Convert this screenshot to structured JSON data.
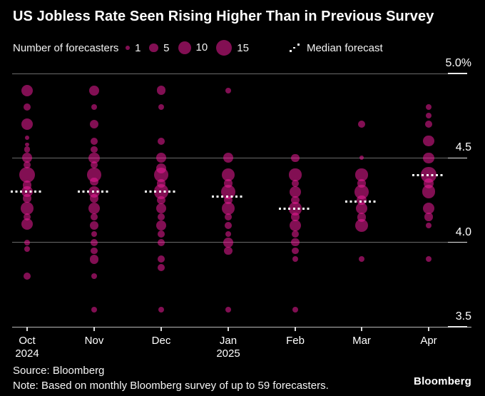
{
  "title": "US Jobless Rate Seen Rising Higher Than in Previous Survey",
  "legend": {
    "label": "Number of forecasters",
    "sizes": [
      {
        "n": 1,
        "label": "1"
      },
      {
        "n": 5,
        "label": "5"
      },
      {
        "n": 10,
        "label": "10"
      },
      {
        "n": 15,
        "label": "15"
      }
    ],
    "median_label": "Median forecast"
  },
  "colors": {
    "background": "#000000",
    "bubble": "rgba(236,28,152,0.55)",
    "bubble_hex": "#ec1c98",
    "gridline": "#6b6b6b",
    "axis_line": "#b9b9b9",
    "median": "#ffffff",
    "text": "#ffffff"
  },
  "y_axis": {
    "tick_labels": [
      "5.0%",
      "4.5",
      "4.0",
      "3.5"
    ],
    "tick_values": [
      5.0,
      4.5,
      4.0,
      3.5
    ],
    "min": 3.5,
    "max": 5.0
  },
  "x_axis": {
    "categories": [
      {
        "label": "Oct",
        "sub": "2024"
      },
      {
        "label": "Nov",
        "sub": ""
      },
      {
        "label": "Dec",
        "sub": ""
      },
      {
        "label": "Jan",
        "sub": "2025"
      },
      {
        "label": "Feb",
        "sub": ""
      },
      {
        "label": "Mar",
        "sub": ""
      },
      {
        "label": "Apr",
        "sub": ""
      }
    ]
  },
  "footer": {
    "source": "Source: Bloomberg",
    "note": "Note: Based on monthly Bloomberg survey of up to 59 forecasters.",
    "logo": "Bloomberg"
  },
  "chart_data": {
    "type": "scatter",
    "subtype": "bubble-strip",
    "unit": "US jobless rate, %",
    "title": "US Jobless Rate Seen Rising Higher Than in Previous Survey",
    "ylim": [
      3.5,
      5.0
    ],
    "grid": "horizontal",
    "legend_position": "top",
    "bubble_scale_note": "bubble area ~ number of forecasters; legend sizes 1, 5, 10, 15",
    "categories": [
      "Oct 2024",
      "Nov",
      "Dec",
      "Jan 2025",
      "Feb",
      "Mar",
      "Apr"
    ],
    "medians": [
      4.3,
      4.3,
      4.3,
      4.27,
      4.2,
      4.24,
      4.4
    ],
    "columns": [
      {
        "month": "Oct 2024",
        "median": 4.3,
        "points": [
          {
            "v": 4.9,
            "n": 8
          },
          {
            "v": 4.8,
            "n": 3
          },
          {
            "v": 4.7,
            "n": 8
          },
          {
            "v": 4.62,
            "n": 1
          },
          {
            "v": 4.58,
            "n": 1
          },
          {
            "v": 4.55,
            "n": 2
          },
          {
            "v": 4.5,
            "n": 6
          },
          {
            "v": 4.46,
            "n": 3
          },
          {
            "v": 4.4,
            "n": 15
          },
          {
            "v": 4.34,
            "n": 5
          },
          {
            "v": 4.3,
            "n": 7
          },
          {
            "v": 4.26,
            "n": 4
          },
          {
            "v": 4.2,
            "n": 10
          },
          {
            "v": 4.15,
            "n": 3
          },
          {
            "v": 4.11,
            "n": 8
          },
          {
            "v": 4.0,
            "n": 2
          },
          {
            "v": 3.96,
            "n": 2
          },
          {
            "v": 3.8,
            "n": 3
          }
        ]
      },
      {
        "month": "Nov",
        "median": 4.3,
        "points": [
          {
            "v": 4.9,
            "n": 6
          },
          {
            "v": 4.8,
            "n": 2
          },
          {
            "v": 4.7,
            "n": 5
          },
          {
            "v": 4.6,
            "n": 3
          },
          {
            "v": 4.55,
            "n": 3
          },
          {
            "v": 4.5,
            "n": 7
          },
          {
            "v": 4.46,
            "n": 3
          },
          {
            "v": 4.4,
            "n": 12
          },
          {
            "v": 4.36,
            "n": 4
          },
          {
            "v": 4.3,
            "n": 8
          },
          {
            "v": 4.26,
            "n": 4
          },
          {
            "v": 4.2,
            "n": 8
          },
          {
            "v": 4.15,
            "n": 3
          },
          {
            "v": 4.1,
            "n": 5
          },
          {
            "v": 4.05,
            "n": 2
          },
          {
            "v": 4.0,
            "n": 3
          },
          {
            "v": 3.95,
            "n": 3
          },
          {
            "v": 3.9,
            "n": 5
          },
          {
            "v": 3.8,
            "n": 2
          },
          {
            "v": 3.6,
            "n": 2
          }
        ]
      },
      {
        "month": "Dec",
        "median": 4.3,
        "points": [
          {
            "v": 4.9,
            "n": 5
          },
          {
            "v": 4.8,
            "n": 2
          },
          {
            "v": 4.6,
            "n": 3
          },
          {
            "v": 4.5,
            "n": 6
          },
          {
            "v": 4.44,
            "n": 6
          },
          {
            "v": 4.4,
            "n": 12
          },
          {
            "v": 4.35,
            "n": 4
          },
          {
            "v": 4.3,
            "n": 13
          },
          {
            "v": 4.25,
            "n": 4
          },
          {
            "v": 4.2,
            "n": 6
          },
          {
            "v": 4.15,
            "n": 3
          },
          {
            "v": 4.1,
            "n": 6
          },
          {
            "v": 4.05,
            "n": 3
          },
          {
            "v": 4.0,
            "n": 3
          },
          {
            "v": 3.9,
            "n": 3
          },
          {
            "v": 3.85,
            "n": 3
          },
          {
            "v": 3.6,
            "n": 2
          }
        ]
      },
      {
        "month": "Jan 2025",
        "median": 4.27,
        "points": [
          {
            "v": 4.9,
            "n": 2
          },
          {
            "v": 4.5,
            "n": 6
          },
          {
            "v": 4.4,
            "n": 11
          },
          {
            "v": 4.35,
            "n": 4
          },
          {
            "v": 4.3,
            "n": 12
          },
          {
            "v": 4.25,
            "n": 4
          },
          {
            "v": 4.2,
            "n": 10
          },
          {
            "v": 4.15,
            "n": 3
          },
          {
            "v": 4.1,
            "n": 3
          },
          {
            "v": 4.05,
            "n": 2
          },
          {
            "v": 4.0,
            "n": 6
          },
          {
            "v": 3.95,
            "n": 4
          },
          {
            "v": 3.6,
            "n": 2
          }
        ]
      },
      {
        "month": "Feb",
        "median": 4.2,
        "points": [
          {
            "v": 4.5,
            "n": 4
          },
          {
            "v": 4.4,
            "n": 9
          },
          {
            "v": 4.35,
            "n": 3
          },
          {
            "v": 4.3,
            "n": 8
          },
          {
            "v": 4.25,
            "n": 4
          },
          {
            "v": 4.2,
            "n": 11
          },
          {
            "v": 4.15,
            "n": 4
          },
          {
            "v": 4.1,
            "n": 8
          },
          {
            "v": 4.05,
            "n": 3
          },
          {
            "v": 4.0,
            "n": 4
          },
          {
            "v": 3.95,
            "n": 3
          },
          {
            "v": 3.9,
            "n": 2
          },
          {
            "v": 3.6,
            "n": 2
          }
        ]
      },
      {
        "month": "Mar",
        "median": 4.24,
        "points": [
          {
            "v": 4.7,
            "n": 3
          },
          {
            "v": 4.5,
            "n": 1
          },
          {
            "v": 4.4,
            "n": 9
          },
          {
            "v": 4.35,
            "n": 4
          },
          {
            "v": 4.3,
            "n": 12
          },
          {
            "v": 4.25,
            "n": 6
          },
          {
            "v": 4.2,
            "n": 8
          },
          {
            "v": 4.15,
            "n": 5
          },
          {
            "v": 4.1,
            "n": 10
          },
          {
            "v": 3.9,
            "n": 2
          }
        ]
      },
      {
        "month": "Apr",
        "median": 4.4,
        "points": [
          {
            "v": 4.8,
            "n": 2
          },
          {
            "v": 4.75,
            "n": 2
          },
          {
            "v": 4.7,
            "n": 3
          },
          {
            "v": 4.6,
            "n": 7
          },
          {
            "v": 4.5,
            "n": 7
          },
          {
            "v": 4.4,
            "n": 14
          },
          {
            "v": 4.35,
            "n": 6
          },
          {
            "v": 4.3,
            "n": 11
          },
          {
            "v": 4.2,
            "n": 8
          },
          {
            "v": 4.15,
            "n": 4
          },
          {
            "v": 4.1,
            "n": 2
          },
          {
            "v": 3.9,
            "n": 2
          }
        ]
      }
    ]
  }
}
